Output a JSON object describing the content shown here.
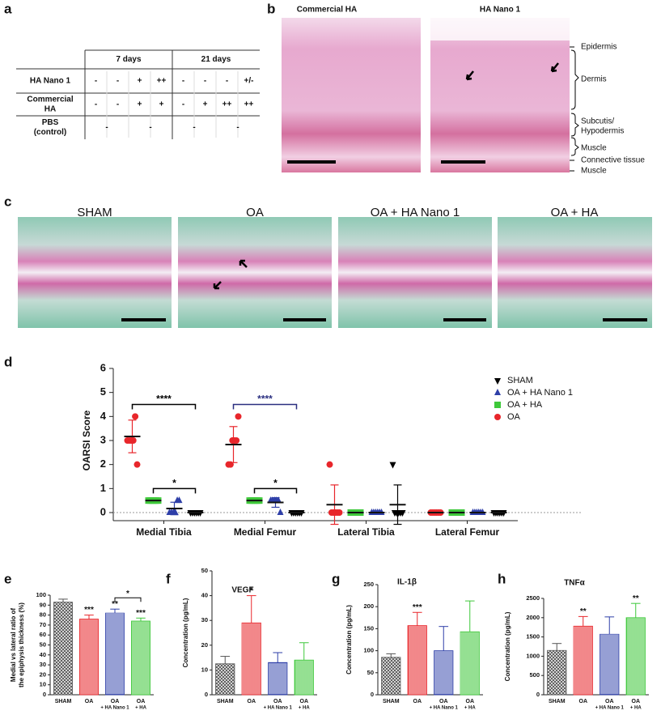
{
  "panel_labels": [
    "a",
    "b",
    "c",
    "d",
    "e",
    "f",
    "g",
    "h"
  ],
  "table": {
    "header": [
      "7 days",
      "21 days"
    ],
    "rows": [
      {
        "label": [
          "HA Nano 1"
        ],
        "cells": [
          "-",
          "-",
          "+",
          "++",
          "-",
          "-",
          "-",
          "+/-"
        ]
      },
      {
        "label": [
          "Commercial",
          "HA"
        ],
        "cells": [
          "-",
          "-",
          "+",
          "+",
          "-",
          "+",
          "++",
          "++"
        ]
      },
      {
        "label": [
          "PBS",
          "(control)"
        ],
        "cells": [
          "-",
          "-",
          "-",
          "-"
        ]
      }
    ]
  },
  "histology": {
    "images": [
      "Commercial HA",
      "HA Nano 1"
    ],
    "layers": [
      [
        "Epidermis"
      ],
      [
        "Dermis"
      ],
      [
        "Subcutis/",
        "Hypodermis"
      ],
      [
        "Muscle"
      ],
      [
        "Connective tissue"
      ],
      [
        "Muscle"
      ]
    ]
  },
  "joints": [
    "SHAM",
    "OA",
    "OA + HA Nano 1",
    "OA + HA"
  ],
  "chart_data": [
    {
      "type": "dot",
      "ylabel": "OARSI Score",
      "categories": [
        "Medial Tibia",
        "Medial Femur",
        "Lateral Tibia",
        "Lateral Femur"
      ],
      "ylim": [
        0,
        6
      ],
      "yticks": [
        0,
        1,
        2,
        3,
        4,
        5,
        6
      ],
      "legend": "upper right",
      "series": [
        {
          "name": "SHAM",
          "color": "#000000",
          "marker": "triangle-down",
          "values": [
            0,
            0,
            0.33,
            0
          ],
          "errors": [
            0,
            0,
            0.82,
            0
          ],
          "points": [
            [
              0,
              0,
              0,
              0,
              0,
              0
            ],
            [
              0,
              0,
              0,
              0,
              0,
              0
            ],
            [
              2,
              0,
              0,
              0,
              0,
              0
            ],
            [
              0,
              0,
              0,
              0,
              0,
              0
            ]
          ]
        },
        {
          "name": "OA + HA Nano 1",
          "color": "#2e3fa8",
          "marker": "triangle-up",
          "values": [
            0.17,
            0.42,
            0,
            0
          ],
          "errors": [
            0.26,
            0.2,
            0,
            0
          ],
          "points": [
            [
              0,
              0,
              0,
              0,
              0.5,
              0.5
            ],
            [
              0.5,
              0.5,
              0.5,
              0.5,
              0.5,
              0
            ],
            [
              0,
              0,
              0,
              0,
              0,
              0
            ],
            [
              0,
              0,
              0,
              0,
              0,
              0
            ]
          ]
        },
        {
          "name": "OA + HA",
          "color": "#3ec83a",
          "marker": "square",
          "values": [
            0.5,
            0.5,
            0,
            0
          ],
          "errors": [
            0,
            0,
            0,
            0
          ],
          "points": [
            [
              0.5,
              0.5,
              0.5,
              0.5,
              0.5,
              0.5
            ],
            [
              0.5,
              0.5,
              0.5,
              0.5,
              0.5,
              0.5
            ],
            [
              0,
              0,
              0,
              0,
              0,
              0
            ],
            [
              0,
              0,
              0,
              0,
              0,
              0
            ]
          ]
        },
        {
          "name": "OA",
          "color": "#e8262b",
          "marker": "circle",
          "values": [
            3.17,
            2.83,
            0.33,
            0
          ],
          "errors": [
            0.68,
            0.75,
            0.82,
            0
          ],
          "points": [
            [
              3,
              3,
              3,
              3,
              4,
              2
            ],
            [
              2,
              2,
              3,
              3,
              3,
              4
            ],
            [
              2,
              0,
              0,
              0,
              0,
              0
            ],
            [
              0,
              0,
              0,
              0,
              0,
              0
            ]
          ]
        }
      ],
      "comparisons": [
        {
          "category": 0,
          "groups": [
            3,
            0
          ],
          "text": "****",
          "color": "#000000"
        },
        {
          "category": 0,
          "groups": [
            2,
            0
          ],
          "text": "*",
          "color": "#000000"
        },
        {
          "category": 1,
          "groups": [
            3,
            0
          ],
          "text": "****",
          "color": "#2a2f80"
        },
        {
          "category": 1,
          "groups": [
            2,
            0
          ],
          "text": "*",
          "color": "#000000"
        }
      ]
    },
    {
      "type": "bar",
      "ylabel": [
        "Medial vs lateral ratio of",
        "the epiphysis thickness (%)"
      ],
      "categories": [
        [
          "SHAM"
        ],
        [
          "OA"
        ],
        [
          "OA",
          "+ HA Nano 1"
        ],
        [
          "OA",
          "+ HA"
        ]
      ],
      "values": [
        93,
        76,
        82,
        74
      ],
      "errors": [
        3,
        4,
        4,
        3
      ],
      "colors": [
        "#555555",
        "#e8262b",
        "#2e3fa8",
        "#3ec83a"
      ],
      "ylim": [
        0,
        100
      ],
      "yticks": [
        0,
        10,
        20,
        30,
        40,
        50,
        60,
        70,
        80,
        90,
        100
      ],
      "significance": [
        null,
        "***",
        "**",
        "***"
      ],
      "comparisons": [
        {
          "groups": [
            2,
            3
          ],
          "text": "*"
        }
      ]
    },
    {
      "type": "bar",
      "title": "VEGF",
      "ylabel": [
        "Concentration (pg/mL)"
      ],
      "categories": [
        [
          "SHAM"
        ],
        [
          "OA"
        ],
        [
          "OA",
          "+ HA Nano 1"
        ],
        [
          "OA",
          "+ HA"
        ]
      ],
      "values": [
        12.5,
        29,
        13,
        14
      ],
      "errors": [
        3,
        11,
        4,
        7
      ],
      "colors": [
        "#555555",
        "#e8262b",
        "#2e3fa8",
        "#3ec83a"
      ],
      "ylim": [
        0,
        50
      ],
      "yticks": [
        0,
        10,
        20,
        30,
        40,
        50
      ],
      "significance": [
        null,
        "*",
        null,
        null
      ]
    },
    {
      "type": "bar",
      "title": "IL-1β",
      "ylabel": [
        "Concentration (pg/mL)"
      ],
      "categories": [
        [
          "SHAM"
        ],
        [
          "OA"
        ],
        [
          "OA",
          "+ HA Nano 1"
        ],
        [
          "OA",
          "+ HA"
        ]
      ],
      "values": [
        85,
        157,
        100,
        143
      ],
      "errors": [
        8,
        30,
        55,
        70
      ],
      "colors": [
        "#555555",
        "#e8262b",
        "#2e3fa8",
        "#3ec83a"
      ],
      "ylim": [
        0,
        250
      ],
      "yticks": [
        0,
        50,
        100,
        150,
        200,
        250
      ],
      "significance": [
        null,
        "***",
        null,
        null
      ]
    },
    {
      "type": "bar",
      "title": "TNFα",
      "ylabel": [
        "Concentration (pg/mL)"
      ],
      "categories": [
        [
          "SHAM"
        ],
        [
          "OA"
        ],
        [
          "OA",
          "+ HA Nano 1"
        ],
        [
          "OA",
          "+ HA"
        ]
      ],
      "values": [
        1150,
        1780,
        1570,
        2000
      ],
      "errors": [
        180,
        250,
        450,
        370
      ],
      "colors": [
        "#555555",
        "#e8262b",
        "#2e3fa8",
        "#3ec83a"
      ],
      "ylim": [
        0,
        2500
      ],
      "yticks": [
        0,
        500,
        1000,
        1500,
        2000,
        2500
      ],
      "significance": [
        null,
        "**",
        null,
        "**"
      ]
    }
  ]
}
